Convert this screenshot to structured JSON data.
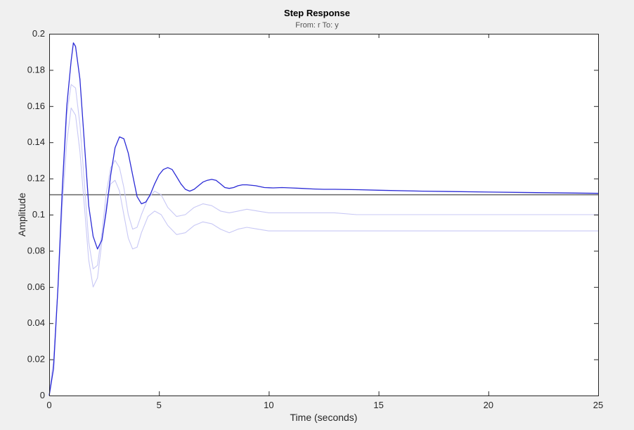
{
  "chart_data": {
    "type": "line",
    "title": "Step Response",
    "subtitle": "From: r  To: y",
    "xlabel": "Time (seconds)",
    "ylabel": "Amplitude",
    "xlim": [
      0,
      25
    ],
    "ylim": [
      0,
      0.2
    ],
    "xticks": [
      0,
      5,
      10,
      15,
      20,
      25
    ],
    "yticks": [
      0,
      0.02,
      0.04,
      0.06,
      0.08,
      0.1,
      0.12,
      0.14,
      0.16,
      0.18,
      0.2
    ],
    "grid": false,
    "reference_line": {
      "y": 0.111,
      "color": "#707070"
    },
    "series": [
      {
        "color": "#c8c8f5",
        "x": [
          0,
          0.2,
          0.4,
          0.6,
          0.8,
          1.0,
          1.2,
          1.4,
          1.6,
          1.8,
          2.0,
          2.2,
          2.4,
          2.6,
          2.8,
          3.0,
          3.2,
          3.4,
          3.6,
          3.8,
          4.0,
          4.2,
          4.5,
          4.8,
          5.1,
          5.4,
          5.8,
          6.2,
          6.6,
          7.0,
          7.4,
          7.8,
          8.2,
          8.6,
          9.0,
          9.5,
          10,
          11,
          12,
          13,
          14,
          15,
          17,
          20,
          25
        ],
        "y": [
          0,
          0.02,
          0.06,
          0.105,
          0.14,
          0.159,
          0.155,
          0.135,
          0.105,
          0.075,
          0.06,
          0.065,
          0.085,
          0.105,
          0.117,
          0.119,
          0.113,
          0.1,
          0.087,
          0.081,
          0.082,
          0.09,
          0.099,
          0.102,
          0.1,
          0.094,
          0.089,
          0.09,
          0.094,
          0.096,
          0.095,
          0.092,
          0.09,
          0.092,
          0.093,
          0.092,
          0.091,
          0.091,
          0.091,
          0.091,
          0.091,
          0.091,
          0.091,
          0.091,
          0.091
        ]
      },
      {
        "color": "#c8c8f5",
        "x": [
          0,
          0.2,
          0.4,
          0.6,
          0.8,
          1.0,
          1.2,
          1.4,
          1.6,
          1.8,
          2.0,
          2.2,
          2.4,
          2.6,
          2.8,
          3.0,
          3.2,
          3.4,
          3.6,
          3.8,
          4.0,
          4.2,
          4.5,
          4.8,
          5.1,
          5.4,
          5.8,
          6.2,
          6.6,
          7.0,
          7.4,
          7.8,
          8.2,
          8.6,
          9.0,
          9.5,
          10,
          11,
          12,
          13,
          14,
          15,
          17,
          20,
          25
        ],
        "y": [
          0,
          0.02,
          0.06,
          0.11,
          0.155,
          0.172,
          0.17,
          0.15,
          0.118,
          0.085,
          0.07,
          0.072,
          0.09,
          0.112,
          0.126,
          0.13,
          0.126,
          0.115,
          0.1,
          0.092,
          0.093,
          0.1,
          0.109,
          0.113,
          0.111,
          0.104,
          0.099,
          0.1,
          0.104,
          0.106,
          0.105,
          0.102,
          0.101,
          0.102,
          0.103,
          0.102,
          0.101,
          0.101,
          0.101,
          0.101,
          0.1,
          0.1,
          0.1,
          0.1,
          0.1
        ]
      },
      {
        "color": "#2b2bd6",
        "x": [
          0,
          0.2,
          0.4,
          0.6,
          0.8,
          1.0,
          1.1,
          1.2,
          1.4,
          1.6,
          1.8,
          2.0,
          2.2,
          2.4,
          2.6,
          2.8,
          3.0,
          3.2,
          3.4,
          3.6,
          3.8,
          4.0,
          4.2,
          4.4,
          4.6,
          4.8,
          5.0,
          5.2,
          5.4,
          5.6,
          5.8,
          6.0,
          6.2,
          6.4,
          6.6,
          6.8,
          7.0,
          7.2,
          7.4,
          7.6,
          7.8,
          8.0,
          8.2,
          8.4,
          8.6,
          8.8,
          9.0,
          9.4,
          9.8,
          10.2,
          10.6,
          11,
          11.5,
          12,
          12.5,
          13,
          14,
          15,
          17,
          20,
          25
        ],
        "y": [
          0,
          0.015,
          0.06,
          0.115,
          0.16,
          0.185,
          0.195,
          0.193,
          0.175,
          0.14,
          0.105,
          0.088,
          0.081,
          0.086,
          0.102,
          0.122,
          0.137,
          0.143,
          0.142,
          0.134,
          0.122,
          0.11,
          0.106,
          0.107,
          0.111,
          0.117,
          0.122,
          0.125,
          0.126,
          0.125,
          0.121,
          0.117,
          0.114,
          0.113,
          0.114,
          0.116,
          0.118,
          0.119,
          0.1195,
          0.119,
          0.117,
          0.115,
          0.1145,
          0.115,
          0.116,
          0.1165,
          0.1165,
          0.116,
          0.115,
          0.1148,
          0.115,
          0.1148,
          0.1145,
          0.1142,
          0.114,
          0.114,
          0.1138,
          0.1135,
          0.113,
          0.1125,
          0.1118
        ]
      }
    ]
  }
}
